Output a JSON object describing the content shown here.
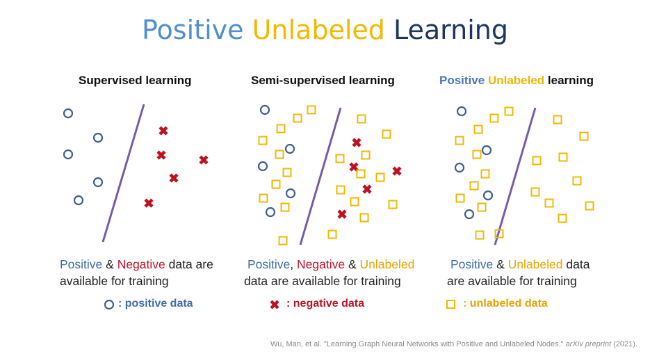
{
  "title": {
    "part1": "Positive",
    "part2": "Unlabeled",
    "part3": "Learning"
  },
  "panels": [
    {
      "heading": "Supervised learning"
    },
    {
      "heading": "Semi-supervised learning"
    },
    {
      "heading_blue": "Positive",
      "heading_gold": "Unlabeled",
      "heading_black": "learning"
    }
  ],
  "descriptions": {
    "supervised": {
      "positive": "Positive",
      "amp": " & ",
      "negative": "Negative",
      "rest1": " data are",
      "line2": "available for training"
    },
    "semi": {
      "positive": "Positive",
      "comma": ", ",
      "negative": "Negative",
      "amp": " & ",
      "unlabeled": "Unlabeled",
      "line2": "data are available for training"
    },
    "pu": {
      "positive": "Positive",
      "amp": " & ",
      "unlabeled": "Unlabeled",
      "rest1": " data",
      "line2": "are available for training"
    }
  },
  "legend": {
    "positive": ": positive data",
    "negative": ": negative data",
    "unlabeled": ": unlabeled data"
  },
  "citation": {
    "authors": "Wu, Man, et al. \"Learning Graph Neural Networks with Positive and Unlabeled Nodes.\" ",
    "venue": "arXiv preprint",
    "year": " (2021)."
  },
  "colors": {
    "positive": "#3f5f8f",
    "negative": "#c01020",
    "unlabeled": "#f2b800",
    "divider": "#7a5aa8"
  }
}
